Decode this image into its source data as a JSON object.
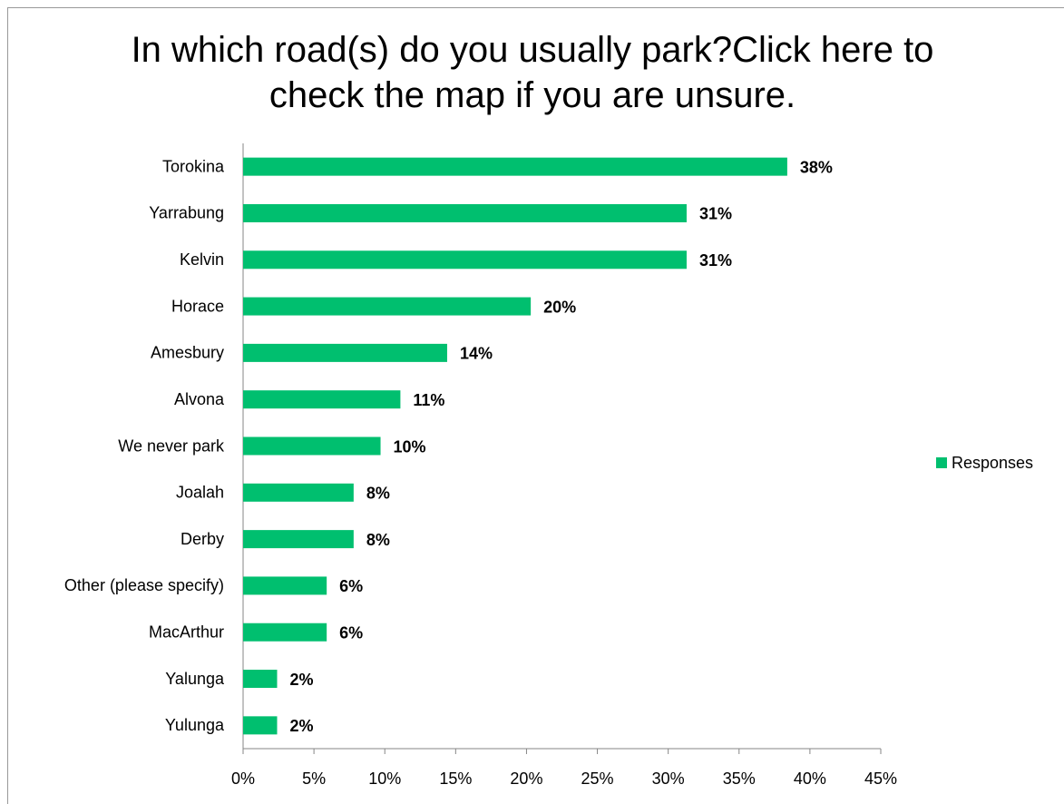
{
  "chart_data": {
    "type": "bar",
    "orientation": "horizontal",
    "title": "In which road(s) do you usually park?Click here to check the map if you are unsure.",
    "categories": [
      "Torokina",
      "Yarrabung",
      "Kelvin",
      "Horace",
      "Amesbury",
      "Alvona",
      "We never park",
      "Joalah",
      "Derby",
      "Other (please specify)",
      "MacArthur",
      "Yalunga",
      "Yulunga"
    ],
    "series": [
      {
        "name": "Responses",
        "color": "#00bf6f",
        "values": [
          38.4,
          31.3,
          31.3,
          20.3,
          14.4,
          11.1,
          9.7,
          7.8,
          7.8,
          5.9,
          5.9,
          2.4,
          2.4
        ],
        "value_labels": [
          "38%",
          "31%",
          "31%",
          "20%",
          "14%",
          "11%",
          "10%",
          "8%",
          "8%",
          "6%",
          "6%",
          "2%",
          "2%"
        ]
      }
    ],
    "xlim": [
      0,
      45
    ],
    "xticks": [
      {
        "value": 0,
        "label": "0%"
      },
      {
        "value": 5,
        "label": "5%"
      },
      {
        "value": 10,
        "label": "10%"
      },
      {
        "value": 15,
        "label": "15%"
      },
      {
        "value": 20,
        "label": "20%"
      },
      {
        "value": 25,
        "label": "25%"
      },
      {
        "value": 30,
        "label": "30%"
      },
      {
        "value": 35,
        "label": "35%"
      },
      {
        "value": 40,
        "label": "40%"
      },
      {
        "value": 45,
        "label": "45%"
      }
    ],
    "grid": false,
    "legend": "right"
  }
}
